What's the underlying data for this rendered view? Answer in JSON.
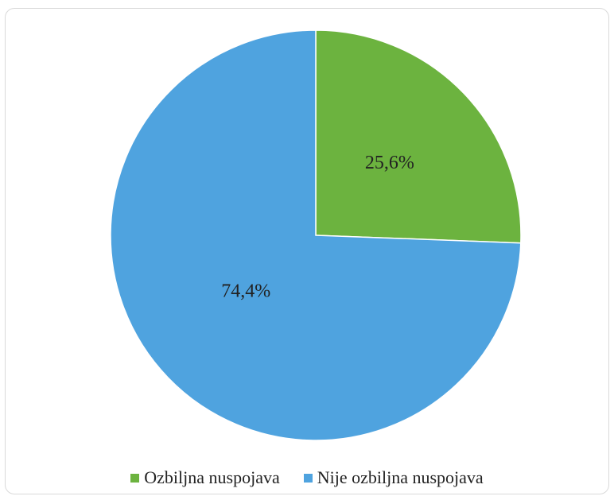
{
  "chart_data": {
    "type": "pie",
    "slices": [
      {
        "label": "Ozbiljna nuspojava",
        "value": 25.6,
        "value_label": "25,6%",
        "color": "#6CB33F"
      },
      {
        "label": "Nije ozbiljna nuspojava",
        "value": 74.4,
        "value_label": "74,4%",
        "color": "#4FA3DF"
      }
    ],
    "start_angle": "12 o'clock",
    "direction": "clockwise",
    "legend_position": "bottom"
  }
}
